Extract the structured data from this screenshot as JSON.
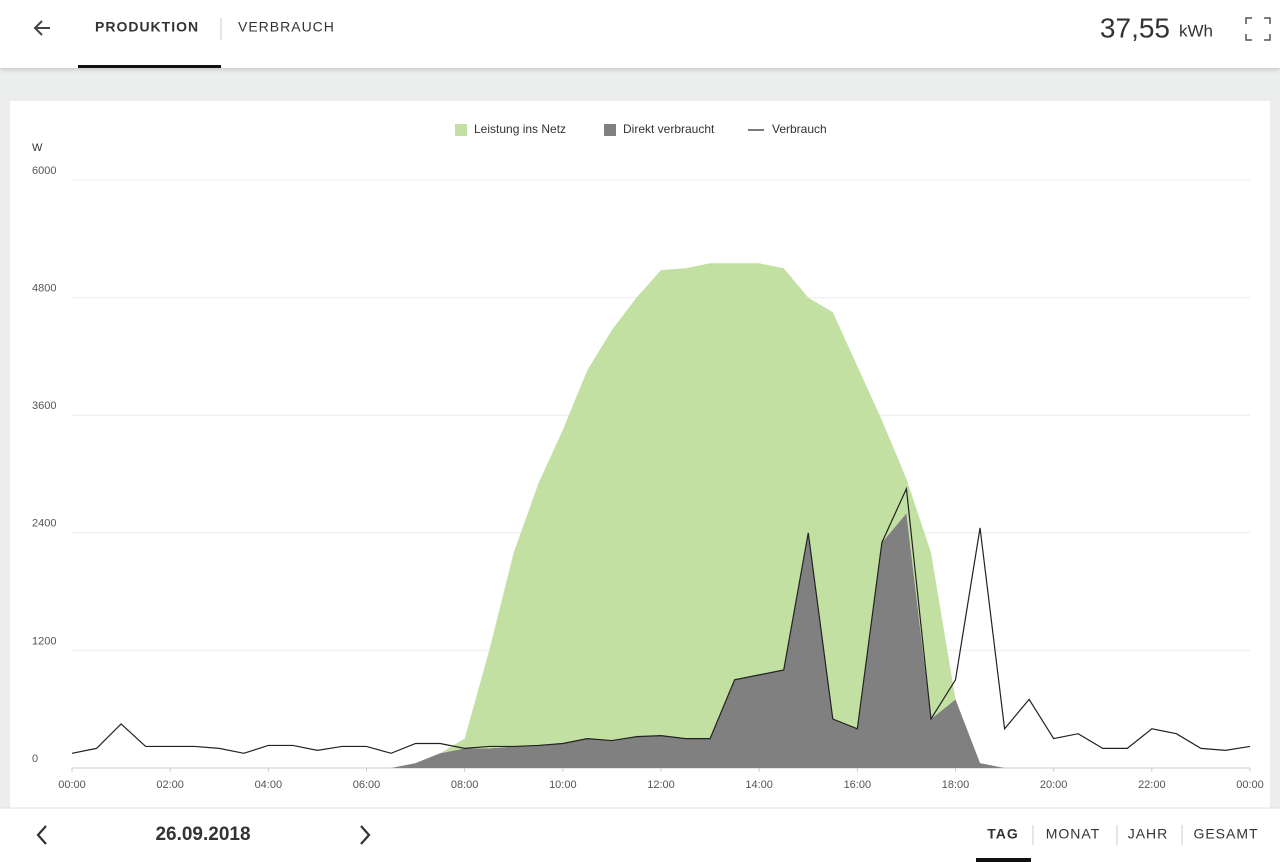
{
  "header": {
    "tabs": [
      "PRODUKTION",
      "VERBRAUCH"
    ],
    "total": "37,55",
    "unit": "kWh"
  },
  "footer": {
    "date": "26.09.2018",
    "ranges": [
      "TAG",
      "MONAT",
      "JAHR",
      "GESAMT"
    ]
  },
  "chart_data": {
    "type": "area",
    "y_label": "W",
    "x": [
      0,
      0.5,
      1,
      1.5,
      2,
      2.5,
      3,
      3.5,
      4,
      4.5,
      5,
      5.5,
      6,
      6.5,
      7,
      7.5,
      8,
      8.5,
      9,
      9.5,
      10,
      10.5,
      11,
      11.5,
      12,
      12.5,
      13,
      13.5,
      14,
      14.5,
      15,
      15.5,
      16,
      16.5,
      17,
      17.5,
      18,
      18.5,
      19,
      19.5,
      20,
      20.5,
      21,
      21.5,
      22,
      22.5,
      23,
      23.5,
      24
    ],
    "series": [
      {
        "name": "Leistung ins Netz",
        "type": "area",
        "color": "#c2e0a2",
        "values": [
          0,
          0,
          0,
          0,
          0,
          0,
          0,
          0,
          0,
          0,
          0,
          0,
          0,
          0,
          0,
          0,
          100,
          1000,
          1980,
          2670,
          3200,
          3760,
          4190,
          4480,
          4750,
          4800,
          4850,
          4250,
          4200,
          4100,
          2400,
          4150,
          3700,
          1250,
          350,
          1700,
          0,
          0,
          0,
          0,
          0,
          0,
          0,
          0,
          0,
          0,
          0,
          0,
          0
        ]
      },
      {
        "name": "Direkt verbraucht",
        "type": "area",
        "color": "#808080",
        "values": [
          0,
          0,
          0,
          0,
          0,
          0,
          0,
          0,
          0,
          0,
          0,
          0,
          0,
          0,
          50,
          150,
          200,
          200,
          220,
          230,
          250,
          300,
          280,
          320,
          330,
          300,
          300,
          900,
          950,
          1000,
          2400,
          500,
          400,
          2300,
          2600,
          500,
          700,
          50,
          0,
          0,
          0,
          0,
          0,
          0,
          0,
          0,
          0,
          0,
          0
        ]
      },
      {
        "name": "Verbrauch",
        "type": "line",
        "color": "#222222",
        "values": [
          150,
          200,
          450,
          220,
          220,
          220,
          200,
          150,
          230,
          230,
          180,
          220,
          220,
          150,
          250,
          250,
          200,
          220,
          220,
          230,
          250,
          300,
          280,
          320,
          330,
          300,
          300,
          900,
          950,
          1000,
          2400,
          500,
          400,
          2300,
          2850,
          500,
          900,
          2450,
          400,
          700,
          300,
          350,
          200,
          200,
          400,
          350,
          200,
          180,
          220
        ]
      }
    ],
    "xlim": [
      0,
      24
    ],
    "xticks": [
      {
        "value": 0,
        "label": "00:00"
      },
      {
        "value": 2,
        "label": "02:00"
      },
      {
        "value": 4,
        "label": "04:00"
      },
      {
        "value": 6,
        "label": "06:00"
      },
      {
        "value": 8,
        "label": "08:00"
      },
      {
        "value": 10,
        "label": "10:00"
      },
      {
        "value": 12,
        "label": "12:00"
      },
      {
        "value": 14,
        "label": "14:00"
      },
      {
        "value": 16,
        "label": "16:00"
      },
      {
        "value": 18,
        "label": "18:00"
      },
      {
        "value": 20,
        "label": "20:00"
      },
      {
        "value": 22,
        "label": "22:00"
      },
      {
        "value": 24,
        "label": "00:00"
      }
    ],
    "ylim": [
      0,
      6000
    ],
    "yticks": [
      0,
      1200,
      2400,
      3600,
      4800,
      6000
    ],
    "grid": true,
    "legend": "top"
  }
}
